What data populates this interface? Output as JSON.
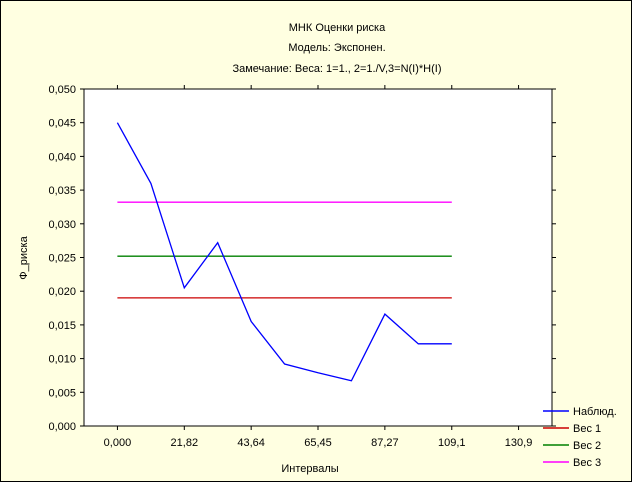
{
  "chart_data": {
    "type": "line",
    "title_lines": [
      "МНК Оценки риска",
      "Модель: Экспонен.",
      "Замечание: Веса: 1=1., 2=1./V,3=N(I)*H(I)"
    ],
    "xlabel": "Интервалы",
    "ylabel": "Ф_риска",
    "xlim": [
      -10.91,
      141.81
    ],
    "ylim": [
      0,
      0.05
    ],
    "x_ticks": [
      {
        "value": 0,
        "label": "0,000"
      },
      {
        "value": 21.82,
        "label": "21,82"
      },
      {
        "value": 43.64,
        "label": "43,64"
      },
      {
        "value": 65.45,
        "label": "65,45"
      },
      {
        "value": 87.27,
        "label": "87,27"
      },
      {
        "value": 109.1,
        "label": "109,1"
      },
      {
        "value": 130.9,
        "label": "130,9"
      }
    ],
    "y_ticks": [
      {
        "value": 0,
        "label": "0,000"
      },
      {
        "value": 0.005,
        "label": "0,005"
      },
      {
        "value": 0.01,
        "label": "0,010"
      },
      {
        "value": 0.015,
        "label": "0,015"
      },
      {
        "value": 0.02,
        "label": "0,020"
      },
      {
        "value": 0.025,
        "label": "0,025"
      },
      {
        "value": 0.03,
        "label": "0,030"
      },
      {
        "value": 0.035,
        "label": "0,035"
      },
      {
        "value": 0.04,
        "label": "0,040"
      },
      {
        "value": 0.045,
        "label": "0,045"
      },
      {
        "value": 0.05,
        "label": "0,050"
      }
    ],
    "legend_position": "bottom-right",
    "series": [
      {
        "name": "Наблюд.",
        "color": "#0000ff",
        "x": [
          0,
          10.91,
          21.82,
          32.73,
          43.64,
          54.55,
          65.45,
          76.36,
          87.27,
          98.18,
          109.1
        ],
        "y": [
          0.045,
          0.036,
          0.0205,
          0.0272,
          0.0155,
          0.0092,
          0.0079,
          0.0067,
          0.0166,
          0.0122,
          0.0122
        ]
      },
      {
        "name": "Вес 1",
        "color": "#cc0000",
        "x": [
          0,
          109.1
        ],
        "y": [
          0.019,
          0.019
        ]
      },
      {
        "name": "Вес 2",
        "color": "#008000",
        "x": [
          0,
          109.1
        ],
        "y": [
          0.0252,
          0.0252
        ]
      },
      {
        "name": "Вес 3",
        "color": "#ff00ff",
        "x": [
          0,
          109.1
        ],
        "y": [
          0.0332,
          0.0332
        ]
      }
    ]
  }
}
